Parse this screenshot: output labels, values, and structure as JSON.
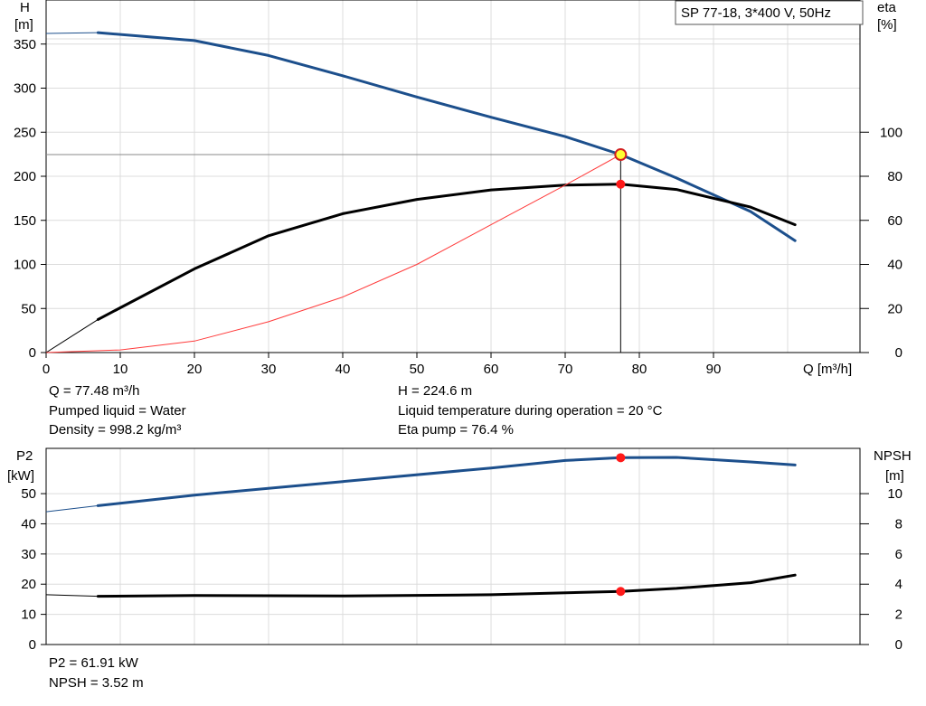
{
  "model_label": "SP 77-18, 3*400 V, 50Hz",
  "info": {
    "q": "Q = 77.48 m³/h",
    "pumped_liquid": "Pumped liquid = Water",
    "density": "Density = 998.2 kg/m³",
    "h": "H = 224.6 m",
    "liquid_temp": "Liquid temperature during operation = 20 °C",
    "eta_pump": "Eta pump = 76.4 %",
    "p2": "P2 = 61.91 kW",
    "npsh": "NPSH = 3.52 m"
  },
  "chart_data": [
    {
      "type": "line",
      "xlabel": "Q [m³/h]",
      "x_ticks": [
        0,
        10,
        20,
        30,
        40,
        50,
        60,
        70,
        80,
        90
      ],
      "xlim": [
        0,
        110
      ],
      "y_axes": {
        "left": {
          "label_line1": "H",
          "label_line2": "[m]",
          "ylim": [
            0,
            400
          ],
          "ticks": [
            0,
            50,
            100,
            150,
            200,
            250,
            300,
            350
          ]
        },
        "right": {
          "label_line1": "eta",
          "label_line2": "[%]",
          "ylim": [
            0,
            160
          ],
          "ticks": [
            0,
            20,
            40,
            60,
            80,
            100
          ]
        }
      },
      "grid": true,
      "series": [
        {
          "axis": "left",
          "color": "#1c4f8c",
          "extrapolated_start": [
            [
              0,
              362
            ]
          ],
          "points": [
            [
              7,
              363
            ],
            [
              20,
              354
            ],
            [
              30,
              337
            ],
            [
              40,
              314
            ],
            [
              50,
              290
            ],
            [
              60,
              267
            ],
            [
              70,
              245
            ],
            [
              77.48,
              224.6
            ],
            [
              85,
              198
            ],
            [
              95,
              160
            ],
            [
              101,
              127
            ]
          ]
        },
        {
          "axis": "right",
          "color": "#000000",
          "extrapolated_start": [
            [
              0,
              0
            ]
          ],
          "points": [
            [
              7,
              15
            ],
            [
              20,
              38
            ],
            [
              30,
              53
            ],
            [
              40,
              63
            ],
            [
              50,
              69.5
            ],
            [
              60,
              73.8
            ],
            [
              70,
              76
            ],
            [
              77.48,
              76.4
            ],
            [
              85,
              74
            ],
            [
              95,
              66
            ],
            [
              101,
              58
            ]
          ]
        },
        {
          "axis": "left",
          "color": "#ff3b3b",
          "role": "system-curve",
          "points": [
            [
              0,
              0
            ],
            [
              10,
              3
            ],
            [
              20,
              13
            ],
            [
              30,
              35
            ],
            [
              40,
              63
            ],
            [
              50,
              100
            ],
            [
              60,
              145
            ],
            [
              70,
              190
            ],
            [
              77.48,
              224.6
            ]
          ]
        }
      ],
      "operating_point": {
        "q": 77.48,
        "h": 224.6,
        "eta": 76.4
      }
    },
    {
      "type": "line",
      "xlim": [
        0,
        110
      ],
      "y_axes": {
        "left": {
          "label_line1": "P2",
          "label_line2": "[kW]",
          "ylim": [
            0,
            65
          ],
          "ticks": [
            0,
            10,
            20,
            30,
            40,
            50
          ]
        },
        "right": {
          "label_line1": "NPSH",
          "label_line2": "[m]",
          "ylim": [
            0,
            13
          ],
          "ticks": [
            0,
            2,
            4,
            6,
            8,
            10
          ]
        }
      },
      "grid": true,
      "series": [
        {
          "axis": "left",
          "color": "#1c4f8c",
          "extrapolated_start": [
            [
              0,
              44
            ]
          ],
          "points": [
            [
              7,
              46
            ],
            [
              20,
              49.5
            ],
            [
              40,
              54
            ],
            [
              60,
              58.5
            ],
            [
              70,
              61
            ],
            [
              77.48,
              61.91
            ],
            [
              85,
              62
            ],
            [
              95,
              60.5
            ],
            [
              101,
              59.5
            ]
          ]
        },
        {
          "axis": "right",
          "color": "#000000",
          "extrapolated_start": [
            [
              0,
              3.3
            ]
          ],
          "points": [
            [
              7,
              3.2
            ],
            [
              20,
              3.25
            ],
            [
              40,
              3.22
            ],
            [
              60,
              3.3
            ],
            [
              77.48,
              3.52
            ],
            [
              85,
              3.72
            ],
            [
              95,
              4.1
            ],
            [
              101,
              4.6
            ]
          ]
        }
      ],
      "operating_point": {
        "q": 77.48,
        "p2": 61.91,
        "npsh": 3.52
      }
    }
  ]
}
